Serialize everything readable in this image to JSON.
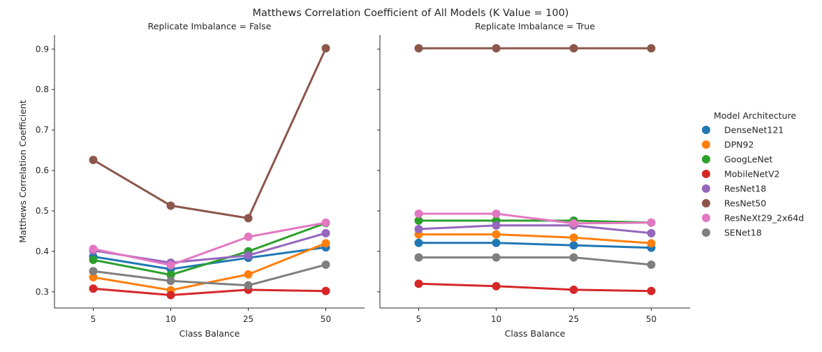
{
  "chart_data": {
    "type": "line",
    "title": "Matthews Correlation Coefficient of All Models (K Value = 100)",
    "ylabel": "Matthews Correlation Coefficient",
    "xlabel": "Class Balance",
    "categories": [
      "5",
      "10",
      "25",
      "50"
    ],
    "ylim": [
      0.26,
      0.935
    ],
    "yticks": [
      "0.3",
      "0.4",
      "0.5",
      "0.6",
      "0.7",
      "0.8",
      "0.9"
    ],
    "grid": false,
    "legend": {
      "title": "Model Architecture",
      "placement": "right",
      "entries": [
        "DenseNet121",
        "DPN92",
        "GoogLeNet",
        "MobileNetV2",
        "ResNet18",
        "ResNet50",
        "ResNeXt29_2x64d",
        "SENet18"
      ]
    },
    "colors": [
      "#1f77b4",
      "#ff7f0e",
      "#2ca02c",
      "#d62728",
      "#9467bd",
      "#8c564b",
      "#e377c2",
      "#7f7f7f"
    ],
    "panels": [
      {
        "title": "Replicate Imbalance = False",
        "series": [
          {
            "name": "DenseNet121",
            "values": [
              0.387,
              0.356,
              0.384,
              0.41
            ]
          },
          {
            "name": "DPN92",
            "values": [
              0.336,
              0.304,
              0.343,
              0.42
            ]
          },
          {
            "name": "GoogLeNet",
            "values": [
              0.379,
              0.342,
              0.4,
              0.47
            ]
          },
          {
            "name": "MobileNetV2",
            "values": [
              0.308,
              0.292,
              0.305,
              0.302
            ]
          },
          {
            "name": "ResNet18",
            "values": [
              0.402,
              0.372,
              0.39,
              0.445
            ]
          },
          {
            "name": "ResNet50",
            "values": [
              0.626,
              0.513,
              0.482,
              0.902
            ]
          },
          {
            "name": "ResNeXt29_2x64d",
            "values": [
              0.406,
              0.366,
              0.436,
              0.471
            ]
          },
          {
            "name": "SENet18",
            "values": [
              0.351,
              0.327,
              0.316,
              0.367
            ]
          }
        ]
      },
      {
        "title": "Replicate Imbalance = True",
        "series": [
          {
            "name": "DenseNet121",
            "values": [
              0.421,
              0.421,
              0.415,
              0.409
            ]
          },
          {
            "name": "DPN92",
            "values": [
              0.442,
              0.442,
              0.434,
              0.42
            ]
          },
          {
            "name": "GoogLeNet",
            "values": [
              0.476,
              0.476,
              0.476,
              0.471
            ]
          },
          {
            "name": "MobileNetV2",
            "values": [
              0.32,
              0.314,
              0.305,
              0.302
            ]
          },
          {
            "name": "ResNet18",
            "values": [
              0.455,
              0.464,
              0.464,
              0.445
            ]
          },
          {
            "name": "ResNet50",
            "values": [
              0.902,
              0.902,
              0.902,
              0.902
            ]
          },
          {
            "name": "ResNeXt29_2x64d",
            "values": [
              0.493,
              0.493,
              0.469,
              0.471
            ]
          },
          {
            "name": "SENet18",
            "values": [
              0.385,
              0.385,
              0.385,
              0.367
            ]
          }
        ]
      }
    ]
  }
}
